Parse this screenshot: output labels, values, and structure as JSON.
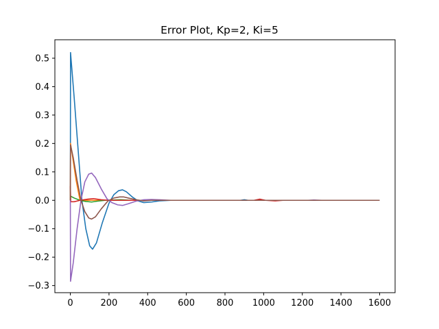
{
  "chart_data": {
    "type": "line",
    "title": "Error Plot, Kp=2, Ki=5",
    "xlabel": "",
    "ylabel": "",
    "xlim": [
      -80,
      1680
    ],
    "ylim": [
      -0.325,
      0.565
    ],
    "xticks": [
      0,
      200,
      400,
      600,
      800,
      1000,
      1200,
      1400,
      1600
    ],
    "xtick_labels": [
      "0",
      "200",
      "400",
      "600",
      "800",
      "1000",
      "1200",
      "1400",
      "1600"
    ],
    "yticks": [
      -0.3,
      -0.2,
      -0.1,
      0.0,
      0.1,
      0.2,
      0.3,
      0.4,
      0.5
    ],
    "ytick_labels": [
      "−0.3",
      "−0.2",
      "−0.1",
      "0.0",
      "0.1",
      "0.2",
      "0.3",
      "0.4",
      "0.5"
    ],
    "grid": false,
    "legend": "none",
    "series": [
      {
        "color": "#1f77b4",
        "points": [
          [
            0,
            0.0
          ],
          [
            1,
            0.52
          ],
          [
            20,
            0.36
          ],
          [
            40,
            0.18
          ],
          [
            60,
            0.0
          ],
          [
            80,
            -0.1
          ],
          [
            100,
            -0.16
          ],
          [
            115,
            -0.172
          ],
          [
            135,
            -0.15
          ],
          [
            165,
            -0.08
          ],
          [
            200,
            -0.01
          ],
          [
            225,
            0.02
          ],
          [
            250,
            0.034
          ],
          [
            270,
            0.037
          ],
          [
            290,
            0.03
          ],
          [
            320,
            0.012
          ],
          [
            350,
            -0.002
          ],
          [
            380,
            -0.008
          ],
          [
            420,
            -0.006
          ],
          [
            460,
            -0.002
          ],
          [
            520,
            0.0
          ],
          [
            600,
            0.0
          ],
          [
            880,
            0.0
          ],
          [
            900,
            0.002
          ],
          [
            920,
            0.0
          ],
          [
            1000,
            0.0
          ],
          [
            1600,
            0.0
          ]
        ]
      },
      {
        "color": "#ff7f0e",
        "points": [
          [
            0,
            0.0
          ],
          [
            1,
            0.2
          ],
          [
            10,
            0.16
          ],
          [
            30,
            0.07
          ],
          [
            50,
            0.0
          ],
          [
            70,
            0.0
          ],
          [
            1600,
            0.0
          ]
        ]
      },
      {
        "color": "#2ca02c",
        "points": [
          [
            0,
            0.015
          ],
          [
            20,
            0.008
          ],
          [
            50,
            0.0
          ],
          [
            80,
            -0.004
          ],
          [
            110,
            -0.006
          ],
          [
            140,
            -0.003
          ],
          [
            180,
            0.0
          ],
          [
            260,
            0.002
          ],
          [
            320,
            0.0
          ],
          [
            1600,
            0.0
          ]
        ]
      },
      {
        "color": "#d62728",
        "points": [
          [
            0,
            0.05
          ],
          [
            2,
            -0.005
          ],
          [
            20,
            -0.005
          ],
          [
            50,
            0.0
          ],
          [
            90,
            0.004
          ],
          [
            120,
            0.006
          ],
          [
            160,
            0.002
          ],
          [
            200,
            0.0
          ],
          [
            950,
            0.0
          ],
          [
            980,
            0.004
          ],
          [
            1010,
            0.0
          ],
          [
            1060,
            -0.002
          ],
          [
            1100,
            0.0
          ],
          [
            1600,
            0.0
          ]
        ]
      },
      {
        "color": "#9467bd",
        "points": [
          [
            0,
            0.0
          ],
          [
            1,
            -0.285
          ],
          [
            15,
            -0.22
          ],
          [
            35,
            -0.1
          ],
          [
            55,
            0.0
          ],
          [
            75,
            0.065
          ],
          [
            95,
            0.092
          ],
          [
            110,
            0.096
          ],
          [
            130,
            0.08
          ],
          [
            160,
            0.04
          ],
          [
            190,
            0.005
          ],
          [
            215,
            -0.008
          ],
          [
            245,
            -0.016
          ],
          [
            270,
            -0.018
          ],
          [
            300,
            -0.012
          ],
          [
            340,
            -0.003
          ],
          [
            380,
            0.002
          ],
          [
            420,
            0.003
          ],
          [
            460,
            0.002
          ],
          [
            520,
            0.0
          ],
          [
            1230,
            0.0
          ],
          [
            1260,
            0.001
          ],
          [
            1300,
            0.0
          ],
          [
            1600,
            0.0
          ]
        ]
      },
      {
        "color": "#8c564b",
        "points": [
          [
            0,
            0.0
          ],
          [
            1,
            0.195
          ],
          [
            15,
            0.15
          ],
          [
            35,
            0.07
          ],
          [
            55,
            0.0
          ],
          [
            75,
            -0.04
          ],
          [
            95,
            -0.062
          ],
          [
            110,
            -0.066
          ],
          [
            130,
            -0.058
          ],
          [
            160,
            -0.03
          ],
          [
            195,
            -0.002
          ],
          [
            225,
            0.008
          ],
          [
            255,
            0.012
          ],
          [
            275,
            0.012
          ],
          [
            300,
            0.008
          ],
          [
            340,
            0.002
          ],
          [
            380,
            -0.002
          ],
          [
            420,
            0.0
          ],
          [
            1600,
            0.0
          ]
        ]
      }
    ]
  }
}
